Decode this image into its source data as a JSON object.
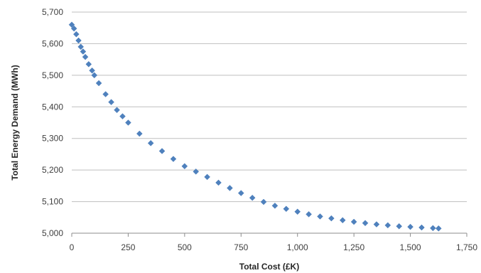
{
  "chart_data": {
    "type": "scatter",
    "title": "",
    "xlabel": "Total Cost (£K)",
    "ylabel": "Total Energy Demand (MWh)",
    "xlim": [
      0,
      1750
    ],
    "ylim": [
      5000,
      5700
    ],
    "x_ticks": [
      0,
      250,
      500,
      750,
      1000,
      1250,
      1500,
      1750
    ],
    "y_ticks": [
      5000,
      5100,
      5200,
      5300,
      5400,
      5500,
      5600,
      5700
    ],
    "x_tick_labels": [
      "0",
      "250",
      "500",
      "750",
      "1,000",
      "1,250",
      "1,500",
      "1,750"
    ],
    "y_tick_labels": [
      "5,000",
      "5,100",
      "5,200",
      "5,300",
      "5,400",
      "5,500",
      "5,600",
      "5,700"
    ],
    "grid": "horizontal",
    "legend": "none",
    "marker": "diamond",
    "color": "#4F81BD",
    "series": [
      {
        "x": [
          0,
          10,
          20,
          30,
          40,
          50,
          60,
          75,
          90,
          100,
          120,
          150,
          175,
          200,
          225,
          250,
          300,
          350,
          400,
          450,
          500,
          550,
          600,
          650,
          700,
          750,
          800,
          850,
          900,
          950,
          1000,
          1050,
          1100,
          1150,
          1200,
          1250,
          1300,
          1350,
          1400,
          1450,
          1500,
          1550,
          1600,
          1625
        ],
        "y": [
          5660,
          5648,
          5630,
          5610,
          5590,
          5575,
          5558,
          5535,
          5515,
          5500,
          5475,
          5440,
          5415,
          5390,
          5370,
          5350,
          5315,
          5285,
          5260,
          5235,
          5212,
          5195,
          5178,
          5160,
          5143,
          5127,
          5112,
          5099,
          5087,
          5077,
          5068,
          5060,
          5053,
          5047,
          5041,
          5036,
          5032,
          5028,
          5025,
          5022,
          5020,
          5018,
          5016,
          5015
        ]
      }
    ]
  }
}
